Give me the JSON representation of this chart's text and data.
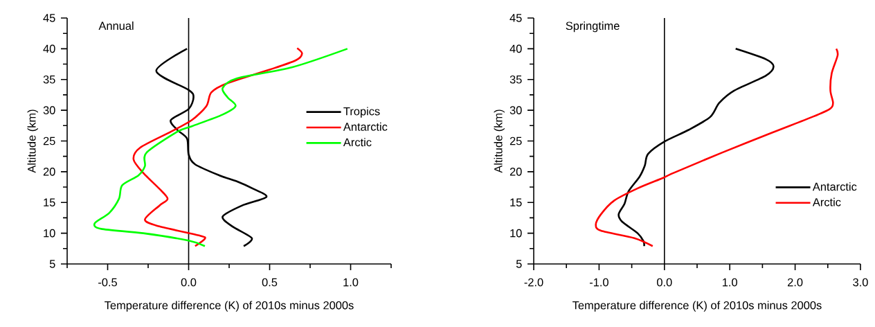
{
  "chart_data": [
    {
      "type": "line",
      "title": "Annual",
      "xlabel": "Temperature difference (K) of 2010s minus 2000s",
      "ylabel": "Altitude (km)",
      "xlim": [
        -0.75,
        1.25
      ],
      "ylim": [
        5,
        45
      ],
      "xticks": [
        {
          "value": -0.75,
          "label": null
        },
        {
          "value": -0.5,
          "label": "-0.5"
        },
        {
          "value": -0.25,
          "label": null
        },
        {
          "value": 0,
          "label": "0.0"
        },
        {
          "value": 0.25,
          "label": null
        },
        {
          "value": 0.5,
          "label": "0.5"
        },
        {
          "value": 0.75,
          "label": null
        },
        {
          "value": 1,
          "label": "1.0"
        },
        {
          "value": 1.25,
          "label": null
        }
      ],
      "yticks": [
        5,
        {
          "value": 7.5,
          "label": null
        },
        10,
        {
          "value": 12.5,
          "label": null
        },
        15,
        {
          "value": 17.5,
          "label": null
        },
        20,
        {
          "value": 22.5,
          "label": null
        },
        25,
        {
          "value": 27.5,
          "label": null
        },
        30,
        {
          "value": 32.5,
          "label": null
        },
        35,
        {
          "value": 37.5,
          "label": null
        },
        40,
        {
          "value": 42.5,
          "label": null
        },
        45
      ],
      "legend": "right",
      "line_style": "solid",
      "grid": false,
      "ref_lines": [
        {
          "axis": "x",
          "value": 0,
          "color": "#000000"
        }
      ],
      "series": [
        {
          "name": "Tropics",
          "color": "#000000",
          "x": [
            0.34,
            0.39,
            0.27,
            0.21,
            0.33,
            0.48,
            0.4,
            0.3,
            0.19,
            0.04,
            0.0,
            -0.01,
            -0.07,
            -0.11,
            0.0,
            0.03,
            0.0,
            -0.2,
            -0.01
          ],
          "values": [
            7.9,
            9.2,
            11.1,
            12.7,
            14.5,
            15.9,
            17.2,
            18.4,
            19.4,
            21.2,
            22.8,
            25.4,
            26.8,
            28.4,
            30.2,
            32.1,
            33.3,
            36.4,
            40
          ]
        },
        {
          "name": "Antarctic",
          "color": "#ff0000",
          "x": [
            0.04,
            0.1,
            0.07,
            -0.18,
            -0.27,
            -0.18,
            -0.13,
            -0.18,
            -0.28,
            -0.34,
            -0.3,
            -0.11,
            0.02,
            0.11,
            0.14,
            0.24,
            0.5,
            0.66,
            0.7,
            0.67
          ],
          "values": [
            7.9,
            9.1,
            9.6,
            11.1,
            12.2,
            14.5,
            15.6,
            17.2,
            19.8,
            22,
            23.9,
            26.5,
            28.4,
            30.7,
            32.9,
            34.4,
            36.6,
            38.1,
            39.2,
            40.1
          ]
        },
        {
          "name": "Arctic",
          "color": "#00ff00",
          "x": [
            0.1,
            0.0,
            -0.28,
            -0.54,
            -0.58,
            -0.49,
            -0.43,
            -0.41,
            -0.31,
            -0.27,
            -0.26,
            -0.07,
            0.02,
            0.21,
            0.29,
            0.24,
            0.21,
            0.3,
            0.64,
            0.98
          ],
          "values": [
            7.9,
            8.8,
            10.0,
            10.7,
            11.6,
            13.3,
            15.6,
            17.8,
            19.4,
            20.9,
            23.1,
            26.5,
            27.4,
            29.3,
            30.7,
            32.1,
            33.6,
            35.2,
            37.0,
            40
          ]
        }
      ]
    },
    {
      "type": "line",
      "title": "Springtime",
      "xlabel": "Temperature difference (K) of 2010s minus 2000s",
      "ylabel": "Altitude (km)",
      "xlim": [
        -2,
        3
      ],
      "ylim": [
        5,
        45
      ],
      "xticks": [
        {
          "value": -2,
          "label": "-2.0"
        },
        {
          "value": -1.5,
          "label": null
        },
        {
          "value": -1,
          "label": "-1.0"
        },
        {
          "value": -0.5,
          "label": null
        },
        {
          "value": 0,
          "label": "0.0"
        },
        {
          "value": 0.5,
          "label": null
        },
        {
          "value": 1,
          "label": "1.0"
        },
        {
          "value": 1.5,
          "label": null
        },
        {
          "value": 2,
          "label": "2.0"
        },
        {
          "value": 2.5,
          "label": null
        },
        {
          "value": 3,
          "label": "3.0"
        }
      ],
      "yticks": [
        5,
        {
          "value": 7.5,
          "label": null
        },
        10,
        {
          "value": 12.5,
          "label": null
        },
        15,
        {
          "value": 17.5,
          "label": null
        },
        20,
        {
          "value": 22.5,
          "label": null
        },
        25,
        {
          "value": 27.5,
          "label": null
        },
        30,
        {
          "value": 32.5,
          "label": null
        },
        35,
        {
          "value": 37.5,
          "label": null
        },
        40,
        {
          "value": 42.5,
          "label": null
        },
        45
      ],
      "legend": "bottom right",
      "line_style": "solid",
      "grid": false,
      "ref_lines": [
        {
          "axis": "x",
          "value": 0,
          "color": "#000000"
        }
      ],
      "series": [
        {
          "name": "Antarctic",
          "color": "#000000",
          "x": [
            -0.31,
            -0.32,
            -0.41,
            -0.65,
            -0.7,
            -0.61,
            -0.55,
            -0.38,
            -0.3,
            -0.25,
            0,
            0.37,
            0.7,
            0.84,
            1.07,
            1.55,
            1.67,
            1.55,
            1.09
          ],
          "values": [
            7.9,
            8.7,
            10.0,
            11.9,
            13.1,
            14.8,
            16.8,
            19.2,
            21.0,
            22.9,
            24.9,
            26.8,
            28.9,
            31.2,
            33.2,
            35.6,
            37.1,
            38.3,
            40
          ]
        },
        {
          "name": "Arctic",
          "color": "#ff0000",
          "x": [
            -0.18,
            -0.46,
            -0.97,
            -1.05,
            -0.97,
            -0.77,
            -0.41,
            -0.02,
            0.14,
            0.88,
            1.66,
            2.26,
            2.53,
            2.58,
            2.54,
            2.56,
            2.65,
            2.63
          ],
          "values": [
            7.9,
            9.2,
            10.4,
            11.4,
            13.1,
            15.3,
            17.3,
            19.0,
            19.8,
            23.1,
            26.4,
            28.9,
            30.2,
            31.2,
            33.2,
            36.0,
            38.9,
            40
          ]
        }
      ]
    }
  ]
}
